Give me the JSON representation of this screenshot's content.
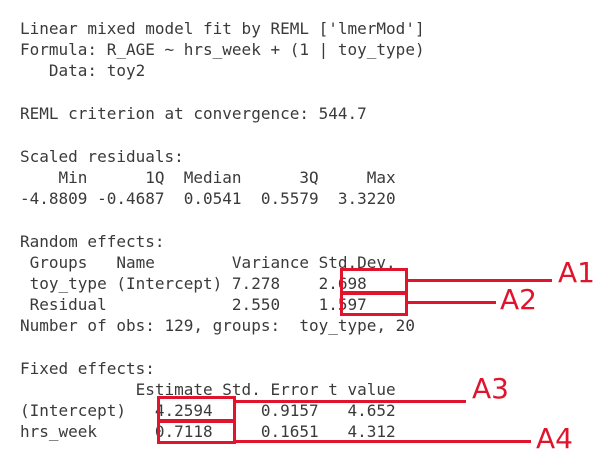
{
  "console": {
    "lines": [
      "Linear mixed model fit by REML ['lmerMod']",
      "Formula: R_AGE ~ hrs_week + (1 | toy_type)",
      "   Data: toy2",
      "",
      "REML criterion at convergence: 544.7",
      "",
      "Scaled residuals:",
      "    Min      1Q  Median      3Q     Max",
      "-4.8809 -0.4687  0.0541  0.5579  3.3220",
      "",
      "Random effects:",
      " Groups   Name        Variance Std.Dev.",
      " toy_type (Intercept) 7.278    2.698",
      " Residual             2.550    1.597",
      "Number of obs: 129, groups:  toy_type, 20",
      "",
      "Fixed effects:",
      "            Estimate Std. Error t value",
      "(Intercept)   4.2594     0.9157   4.652",
      "hrs_week      0.7118     0.1651   4.312"
    ]
  },
  "annotations": {
    "color": "#e0142c",
    "labels": [
      "A1",
      "A2",
      "A3",
      "A4"
    ]
  }
}
